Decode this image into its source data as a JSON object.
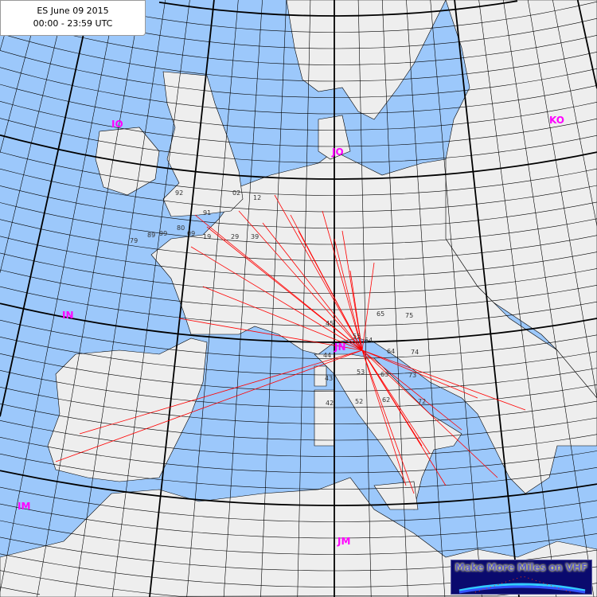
{
  "title": {
    "line1": "ES June 09 2015",
    "line2": "00:00 - 23:59 UTC"
  },
  "map": {
    "colors": {
      "sea": "#9cc8fb",
      "land": "#eeeeee",
      "grid": "#000000",
      "path": "#ff0000",
      "field_label": "#ff00ff"
    },
    "field_labels": [
      "IO",
      "JO",
      "KO",
      "IN",
      "JN",
      "IM",
      "JM"
    ],
    "square_labels": [
      "91",
      "80",
      "92",
      "02",
      "12",
      "79",
      "89",
      "99",
      "09",
      "19",
      "29",
      "39",
      "54",
      "64",
      "74",
      "73",
      "72",
      "63",
      "53",
      "43",
      "44",
      "45",
      "55",
      "65",
      "75",
      "62",
      "52",
      "42"
    ]
  },
  "logo": {
    "text": "Make More Miles on VHF"
  }
}
